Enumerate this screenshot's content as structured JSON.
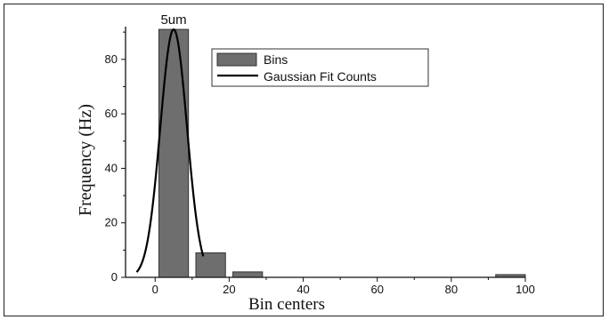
{
  "chart_data": {
    "type": "bar",
    "bar_series_name": "Bins",
    "line_series_name": "Gaussian Fit Counts",
    "xlabel": "Bin centers",
    "ylabel": "Frequency (Hz)",
    "annotation": "5um",
    "xlim": [
      -8,
      100
    ],
    "ylim": [
      0,
      92
    ],
    "xticks": [
      0,
      20,
      40,
      60,
      80,
      100
    ],
    "yticks": [
      0,
      20,
      40,
      60,
      80
    ],
    "grid": false,
    "legend_position": "top-right",
    "bins": [
      {
        "x0": 1,
        "x1": 9,
        "value": 91
      },
      {
        "x0": 11,
        "x1": 19,
        "value": 9
      },
      {
        "x0": 21,
        "x1": 29,
        "value": 2
      },
      {
        "x0": 92,
        "x1": 100,
        "value": 1
      }
    ],
    "gaussian": {
      "amplitude": 91,
      "mean": 5,
      "sigma": 3.6,
      "x_start": -5,
      "x_end": 13
    },
    "colors": {
      "bar": "#6e6e6e",
      "bar_edge": "#333333",
      "line": "#000000"
    }
  }
}
